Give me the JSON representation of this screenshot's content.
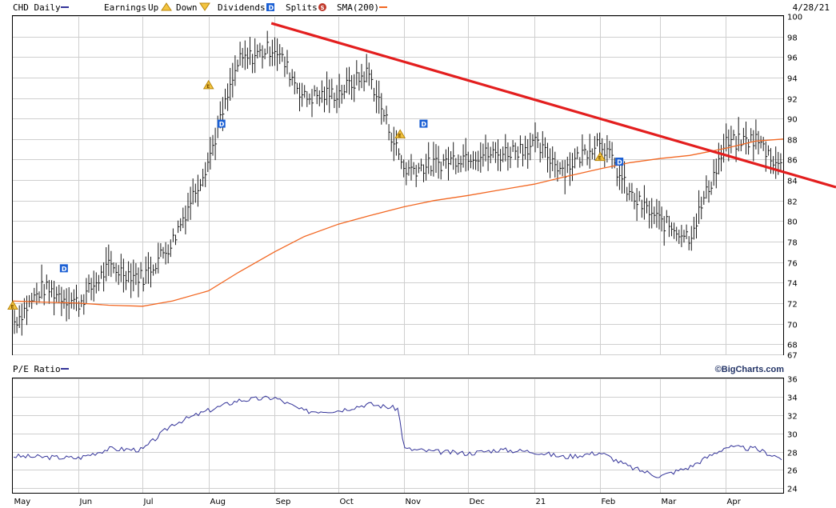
{
  "header": {
    "ticker_label": "CHD Daily",
    "legend": {
      "earnings_label": "Earnings",
      "up_label": "Up",
      "down_label": "Down",
      "dividends_label": "Dividends",
      "splits_label": "Splits",
      "sma_label": "SMA(200)"
    },
    "date": "4/28/21",
    "colors": {
      "ticker_swatch": "#333399",
      "sma": "#f26722",
      "trend": "#e31e1e",
      "dividend": "#1a5fd4",
      "split": "#c0392b",
      "earnings": "#d6a020"
    }
  },
  "lower_panel": {
    "title": "P/E Ratio",
    "watermark": "©BigCharts.com"
  },
  "x_axis": {
    "months": [
      "May",
      "Jun",
      "Jul",
      "Aug",
      "Sep",
      "Oct",
      "Nov",
      "Dec",
      "21",
      "Feb",
      "Mar",
      "Apr"
    ]
  },
  "chart_data": [
    {
      "type": "line",
      "title": "CHD Daily",
      "x": [
        "2020-05-01",
        "2020-05-15",
        "2020-06-01",
        "2020-06-15",
        "2020-07-01",
        "2020-07-15",
        "2020-08-01",
        "2020-08-15",
        "2020-09-01",
        "2020-09-15",
        "2020-10-01",
        "2020-10-15",
        "2020-11-01",
        "2020-11-15",
        "2020-12-01",
        "2020-12-15",
        "2021-01-01",
        "2021-01-15",
        "2021-02-01",
        "2021-02-15",
        "2021-03-01",
        "2021-03-15",
        "2021-04-01",
        "2021-04-15",
        "2021-04-28"
      ],
      "series": [
        {
          "name": "CHD Daily",
          "values": [
            70,
            73.5,
            72,
            75.5,
            74.5,
            78,
            86,
            95.5,
            97,
            92,
            92.5,
            94.5,
            85,
            85.5,
            86.5,
            86.5,
            87.5,
            85,
            88,
            82.5,
            80,
            78.5,
            87.5,
            88,
            85
          ]
        },
        {
          "name": "SMA(200)",
          "values": [
            72.2,
            72.1,
            72.0,
            71.8,
            71.7,
            72.2,
            73.2,
            75.0,
            77.0,
            78.5,
            79.7,
            80.5,
            81.4,
            82.0,
            82.5,
            83.0,
            83.6,
            84.3,
            85.1,
            85.7,
            86.1,
            86.4,
            87.1,
            87.8,
            88.0
          ]
        }
      ],
      "ylim": [
        67,
        100
      ],
      "y_ticks": [
        67,
        68,
        70,
        72,
        74,
        76,
        78,
        80,
        82,
        84,
        86,
        88,
        90,
        92,
        94,
        96,
        98,
        100
      ],
      "trendline": {
        "x": [
          "2020-09-01",
          "2021-04-28"
        ],
        "values": [
          99.2,
          84.8
        ]
      },
      "markers": {
        "dividends": [
          {
            "label": "D",
            "date": "2020-05-25",
            "value": 75.4
          },
          {
            "label": "D",
            "date": "2020-08-07",
            "value": 89.5
          },
          {
            "label": "D",
            "date": "2020-11-10",
            "value": 89.5
          },
          {
            "label": "D",
            "date": "2021-02-10",
            "value": 85.8
          }
        ],
        "earnings": [
          {
            "label": "E",
            "date": "2020-05-01",
            "value": 71.8
          },
          {
            "label": "E",
            "date": "2020-08-01",
            "value": 93.3
          },
          {
            "label": "E",
            "date": "2020-10-30",
            "value": 88.5
          },
          {
            "label": "E",
            "date": "2021-02-01",
            "value": 86.3
          }
        ]
      }
    },
    {
      "type": "line",
      "title": "P/E Ratio",
      "x": [
        "2020-05-01",
        "2020-05-15",
        "2020-06-01",
        "2020-06-15",
        "2020-07-01",
        "2020-07-15",
        "2020-08-01",
        "2020-08-15",
        "2020-09-01",
        "2020-09-15",
        "2020-10-01",
        "2020-10-15",
        "2020-10-29",
        "2020-11-01",
        "2020-11-15",
        "2020-12-01",
        "2020-12-15",
        "2021-01-01",
        "2021-01-15",
        "2021-02-01",
        "2021-02-15",
        "2021-03-01",
        "2021-03-15",
        "2021-04-01",
        "2021-04-15",
        "2021-04-28"
      ],
      "series": [
        {
          "name": "P/E Ratio",
          "values": [
            27.5,
            27.4,
            27.3,
            28.3,
            28.2,
            31.0,
            32.5,
            33.6,
            33.9,
            32.4,
            32.5,
            33.2,
            32.7,
            28.3,
            28.0,
            27.8,
            28.2,
            28.0,
            27.4,
            27.9,
            26.3,
            25.3,
            26.3,
            28.5,
            28.3,
            27.2
          ]
        }
      ],
      "ylim": [
        23.5,
        36
      ],
      "y_ticks": [
        24,
        26,
        28,
        30,
        32,
        34,
        36
      ]
    }
  ]
}
